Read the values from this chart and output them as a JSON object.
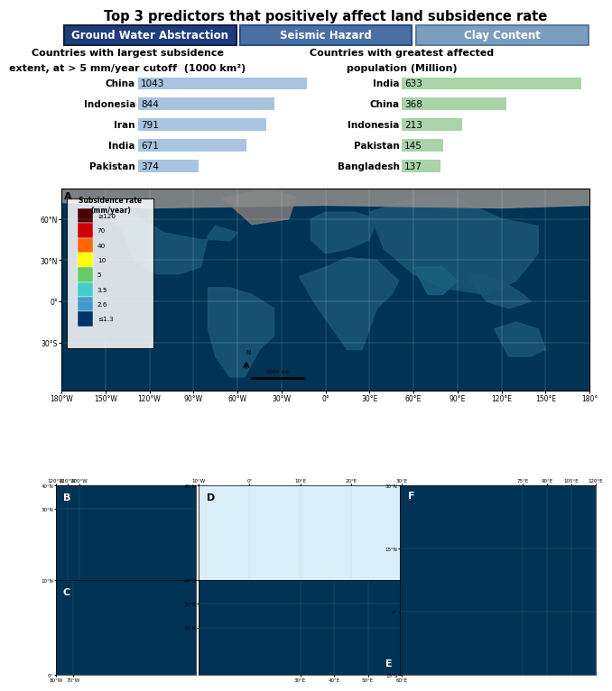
{
  "title": "Top 3 predictors that positively affect land subsidence rate",
  "legend_labels": [
    "Ground Water Abstraction",
    "Seismic Hazard",
    "Clay Content"
  ],
  "legend_colors": [
    "#1f3d7a",
    "#4a6fa5",
    "#7b9ec0"
  ],
  "legend_border_colors": [
    "#0f1f4a",
    "#2a4f85",
    "#5b7c9f"
  ],
  "left_title_line1": "Countries with largest subsidence",
  "left_title_line2": "extent, at > 5 mm/year cutoff  (1000 km²)",
  "right_title_line1": "Countries with greatest affected",
  "right_title_line2": "population (Million)",
  "left_countries": [
    "China",
    "Indonesia",
    "Iran",
    "India",
    "Pakistan"
  ],
  "left_values": [
    1043,
    844,
    791,
    671,
    374
  ],
  "left_bar_color": "#a8c4e0",
  "right_countries": [
    "India",
    "China",
    "Indonesia",
    "Pakistan",
    "Bangladesh"
  ],
  "right_values": [
    633,
    368,
    213,
    145,
    137
  ],
  "right_bar_color": "#a8d4a8",
  "colorbar_title_line1": "Subsidence rate",
  "colorbar_title_line2": "(mm/year)",
  "colorbar_labels": [
    "≥120",
    "70",
    "40",
    "10",
    "5",
    "3.5",
    "2.6",
    "≤1.3"
  ],
  "colorbar_colors": [
    "#4a0000",
    "#cc0000",
    "#ff6600",
    "#ffff00",
    "#66cc66",
    "#44cccc",
    "#4499cc",
    "#003366"
  ],
  "map_bg_color": "#003355",
  "map_land_color": "#1a5070",
  "map_arctic_color": "#888888",
  "panel_bg_DE": "#d0e8f0",
  "panel_bg_map": "#003355",
  "background_color": "#ffffff",
  "bar_label_fontsize": 7.5,
  "title_fontsize": 10.5,
  "legend_fontsize": 8.5,
  "subtitle_fontsize": 8.0,
  "tick_fontsize": 5.5,
  "panel_label_fontsize": 8
}
